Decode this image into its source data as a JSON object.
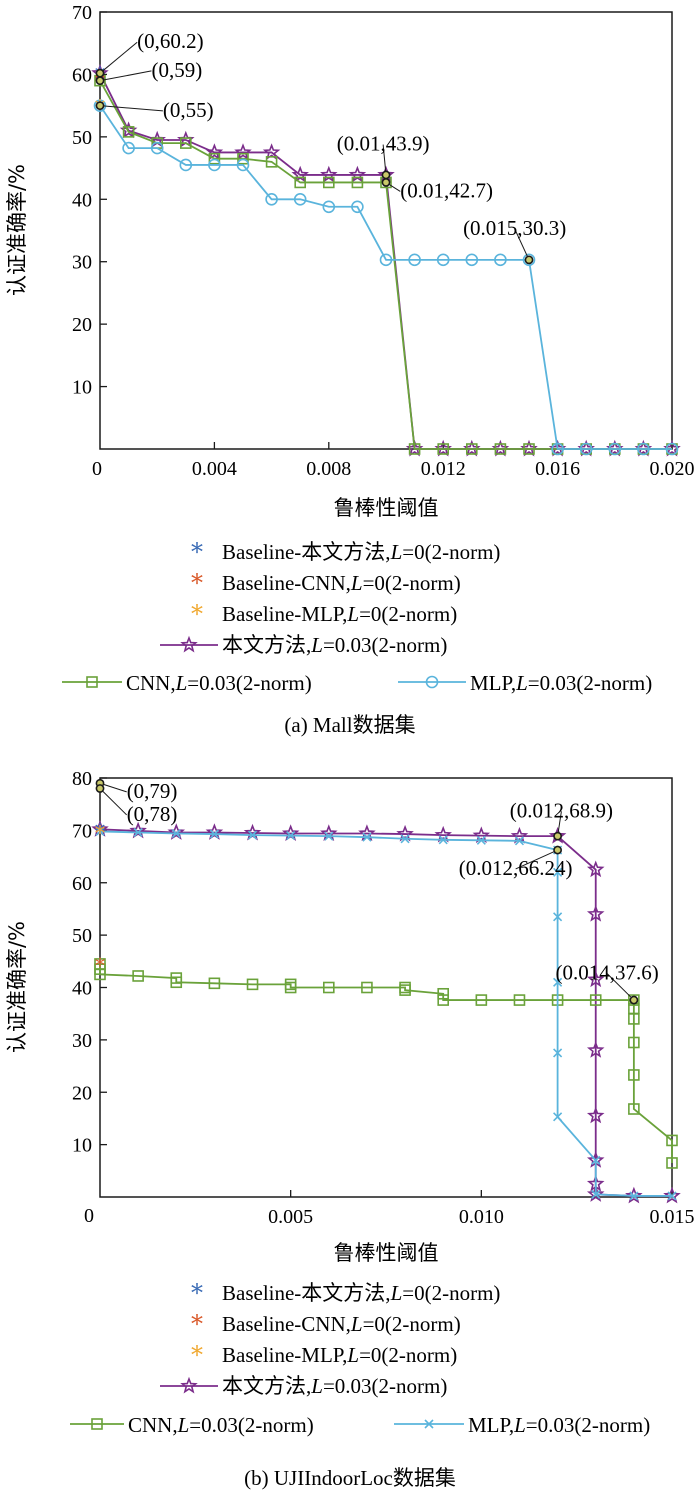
{
  "colors": {
    "baseline_ours": "#3a6bb5",
    "baseline_cnn": "#d9592a",
    "baseline_mlp": "#f0a830",
    "ours": "#7b2d8b",
    "cnn": "#6aa23a",
    "mlp": "#5ab4dc",
    "annotation_dot": "#1a1a1a",
    "annotation_dot_fill": "#c9c96a"
  },
  "legend": {
    "baseline_ours": {
      "name": "Baseline-本文方法,",
      "L": "L",
      "rest": "=0(2-norm)"
    },
    "baseline_cnn": {
      "name": "Baseline-CNN,",
      "L": "L",
      "rest": "=0(2-norm)"
    },
    "baseline_mlp": {
      "name": "Baseline-MLP,",
      "L": "L",
      "rest": "=0(2-norm)"
    },
    "ours": {
      "name": "本文方法,",
      "L": "L",
      "rest": "=0.03(2-norm)"
    },
    "cnn": {
      "name": "CNN,",
      "L": "L",
      "rest": "=0.03(2-norm)"
    },
    "mlp": {
      "name": "MLP,",
      "L": "L",
      "rest": "=0.03(2-norm)"
    }
  },
  "chart_data": [
    {
      "type": "line",
      "caption": "(a) Mall数据集",
      "xlabel": "鲁棒性阈值",
      "ylabel": "认证准确率/%",
      "xlim": [
        0,
        0.02
      ],
      "ylim": [
        0,
        70
      ],
      "xticks": [
        0.004,
        0.008,
        0.012,
        0.016,
        0.02
      ],
      "xtick_labels": [
        "0.004",
        "0.008",
        "0.012",
        "0.016",
        "0.020"
      ],
      "yticks": [
        10,
        20,
        30,
        40,
        50,
        60,
        70
      ],
      "ytick_labels": [
        "10",
        "20",
        "30",
        "40",
        "50",
        "60",
        "70"
      ],
      "origin_label": "0",
      "series": [
        {
          "name": "本文方法,L=0.03(2-norm)",
          "key": "ours",
          "marker": "star",
          "x": [
            0,
            0.001,
            0.002,
            0.003,
            0.004,
            0.005,
            0.006,
            0.007,
            0.008,
            0.009,
            0.01,
            0.011,
            0.012,
            0.013,
            0.014,
            0.015,
            0.016,
            0.017,
            0.018,
            0.019,
            0.02
          ],
          "y": [
            60.2,
            51,
            49.5,
            49.5,
            47.5,
            47.5,
            47.5,
            43.9,
            43.9,
            43.9,
            43.9,
            0,
            0,
            0,
            0,
            0,
            0,
            0,
            0,
            0,
            0
          ]
        },
        {
          "name": "CNN,L=0.03(2-norm)",
          "key": "cnn",
          "marker": "square",
          "x": [
            0,
            0.001,
            0.002,
            0.003,
            0.004,
            0.005,
            0.006,
            0.007,
            0.008,
            0.009,
            0.01,
            0.011,
            0.012,
            0.013,
            0.014,
            0.015,
            0.016,
            0.017,
            0.018,
            0.019,
            0.02
          ],
          "y": [
            59,
            50.8,
            49,
            49,
            46.5,
            46.5,
            46,
            42.7,
            42.7,
            42.7,
            42.7,
            0,
            0,
            0,
            0,
            0,
            0,
            0,
            0,
            0,
            0
          ]
        },
        {
          "name": "MLP,L=0.03(2-norm)",
          "key": "mlp",
          "marker": "circle",
          "x": [
            0,
            0.001,
            0.002,
            0.003,
            0.004,
            0.005,
            0.006,
            0.007,
            0.008,
            0.009,
            0.01,
            0.011,
            0.012,
            0.013,
            0.014,
            0.015,
            0.016,
            0.017,
            0.018,
            0.019,
            0.02
          ],
          "y": [
            55,
            48.2,
            48.2,
            45.5,
            45.5,
            45.5,
            40,
            40,
            38.8,
            38.8,
            30.3,
            30.3,
            30.3,
            30.3,
            30.3,
            30.3,
            0,
            0,
            0,
            0,
            0
          ]
        }
      ],
      "baseline_points": [
        {
          "key": "baseline_ours",
          "x": 0,
          "y": 60.2
        },
        {
          "key": "baseline_cnn",
          "x": 0,
          "y": 59
        },
        {
          "key": "baseline_mlp",
          "x": 0,
          "y": 55
        }
      ],
      "annotations": [
        {
          "x": 0,
          "y": 60.2,
          "label": "(0,60.2)",
          "lx": 0.0013,
          "ly": 64.2,
          "anchor": "start"
        },
        {
          "x": 0,
          "y": 59,
          "label": "(0,59)",
          "lx": 0.0018,
          "ly": 59.6,
          "anchor": "start"
        },
        {
          "x": 0,
          "y": 55,
          "label": "(0,55)",
          "lx": 0.0022,
          "ly": 53.2,
          "anchor": "start"
        },
        {
          "x": 0.01,
          "y": 43.9,
          "label": "(0.01,43.9)",
          "lx": 0.0099,
          "ly": 47.8,
          "anchor": "middle"
        },
        {
          "x": 0.01,
          "y": 42.7,
          "label": "(0.01,42.7)",
          "lx": 0.0105,
          "ly": 40.3,
          "anchor": "start"
        },
        {
          "x": 0.015,
          "y": 30.3,
          "label": "(0.015,30.3)",
          "lx": 0.0145,
          "ly": 34.3,
          "anchor": "middle"
        }
      ]
    },
    {
      "type": "line",
      "caption": "(b) UJIIndoorLoc数据集",
      "xlabel": "鲁棒性阈值",
      "ylabel": "认证准确率/%",
      "xlim": [
        0,
        0.015
      ],
      "ylim": [
        0,
        80
      ],
      "xticks": [
        0.005,
        0.01,
        0.015
      ],
      "xtick_labels": [
        "0.005",
        "0.010",
        "0.015"
      ],
      "yticks": [
        10,
        20,
        30,
        40,
        50,
        60,
        70,
        80
      ],
      "ytick_labels": [
        "10",
        "20",
        "30",
        "40",
        "50",
        "60",
        "70",
        "80"
      ],
      "origin_label": "0",
      "series": [
        {
          "name": "本文方法,L=0.03(2-norm)",
          "key": "ours",
          "marker": "star",
          "x": [
            0,
            0.001,
            0.002,
            0.003,
            0.004,
            0.005,
            0.006,
            0.007,
            0.008,
            0.009,
            0.01,
            0.011,
            0.012,
            0.013,
            0.013,
            0.013,
            0.013,
            0.013,
            0.013,
            0.013,
            0.013,
            0.014,
            0.015
          ],
          "y": [
            70.2,
            69.9,
            69.6,
            69.6,
            69.5,
            69.4,
            69.4,
            69.4,
            69.3,
            69.1,
            69.0,
            68.9,
            68.9,
            62.5,
            54,
            41.5,
            28,
            15.5,
            7,
            2.5,
            0.5,
            0.2,
            0.2
          ]
        },
        {
          "name": "CNN,L=0.03(2-norm)",
          "key": "cnn",
          "marker": "square",
          "x": [
            0,
            0,
            0,
            0.001,
            0.002,
            0.002,
            0.003,
            0.004,
            0.005,
            0.005,
            0.006,
            0.007,
            0.008,
            0.008,
            0.009,
            0.009,
            0.01,
            0.011,
            0.012,
            0.013,
            0.014,
            0.014,
            0.014,
            0.014,
            0.014,
            0.014,
            0.015,
            0.015
          ],
          "y": [
            44.5,
            43.5,
            42.5,
            42.2,
            41.8,
            41.0,
            40.8,
            40.6,
            40.6,
            40.0,
            40.0,
            40.0,
            40.0,
            39.5,
            38.8,
            37.6,
            37.6,
            37.6,
            37.6,
            37.6,
            37.6,
            36.0,
            34.0,
            29.5,
            23.3,
            16.8,
            10.8,
            6.5
          ]
        },
        {
          "name": "MLP,L=0.03(2-norm)",
          "key": "mlp",
          "marker": "x",
          "x": [
            0,
            0.001,
            0.002,
            0.003,
            0.004,
            0.005,
            0.006,
            0.007,
            0.008,
            0.009,
            0.01,
            0.011,
            0.012,
            0.012,
            0.012,
            0.012,
            0.012,
            0.012,
            0.013,
            0.013,
            0.014,
            0.015
          ],
          "y": [
            69.8,
            69.6,
            69.4,
            69.3,
            69.1,
            69.0,
            68.9,
            68.7,
            68.4,
            68.2,
            68.1,
            68.0,
            66.24,
            62.0,
            53.5,
            41.0,
            27.5,
            15.3,
            7.0,
            0.5,
            0.2,
            0.2
          ]
        }
      ],
      "baseline_points": [
        {
          "key": "baseline_ours",
          "x": 0,
          "y": 70.2
        },
        {
          "key": "baseline_cnn",
          "x": 0,
          "y": 44.5
        },
        {
          "key": "baseline_mlp",
          "x": 0,
          "y": 69.8
        }
      ],
      "annotations": [
        {
          "x": 0,
          "y": 79,
          "label": "(0,79)",
          "lx": 0.0007,
          "ly": 76.2,
          "anchor": "start"
        },
        {
          "x": 0,
          "y": 78,
          "label": "(0,78)",
          "lx": 0.0007,
          "ly": 71.8,
          "anchor": "start"
        },
        {
          "x": 0.012,
          "y": 68.9,
          "label": "(0.012,68.9)",
          "lx": 0.0121,
          "ly": 72.5,
          "anchor": "middle"
        },
        {
          "x": 0.012,
          "y": 66.24,
          "label": "(0.012,66.24)",
          "lx": 0.0109,
          "ly": 61.5,
          "anchor": "middle"
        },
        {
          "x": 0.014,
          "y": 37.6,
          "label": "(0.014,37.6)",
          "lx": 0.0133,
          "ly": 41.5,
          "anchor": "middle"
        }
      ]
    }
  ]
}
